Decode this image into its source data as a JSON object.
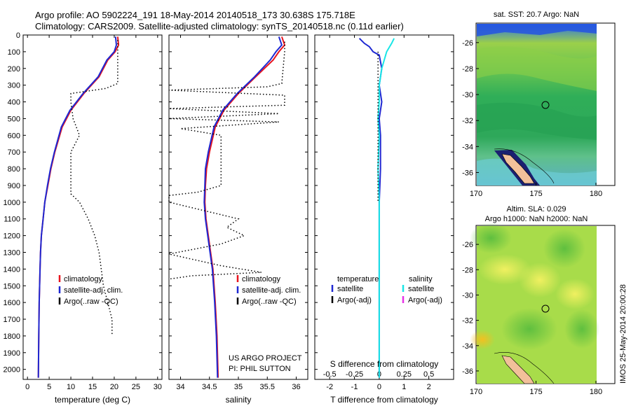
{
  "header": {
    "line1": "Argo profile: AO 5902224_191 18-May-2014 20140518_173 30.638S 175.718E",
    "line2": "Climatology: CARS2009. Satellite-adjusted climatology: synTS_20140518.nc (0.11d earlier)"
  },
  "colors": {
    "climatology": "#e8141e",
    "satellite": "#1e28d2",
    "argo": "#000000",
    "sat_salinity": "#19e6e6",
    "argo_adj_salinity": "#e632e6"
  },
  "chart_data": [
    {
      "type": "line",
      "name": "temperature-panel",
      "xlabel": "temperature (deg C)",
      "xlim": [
        -1,
        31
      ],
      "xticks": [
        0,
        5,
        10,
        15,
        20,
        25,
        30
      ],
      "ylim": [
        0,
        2060
      ],
      "yticks": [
        0,
        100,
        200,
        300,
        400,
        500,
        600,
        700,
        800,
        900,
        1000,
        1100,
        1200,
        1300,
        1400,
        1500,
        1600,
        1700,
        1800,
        1900,
        2000
      ],
      "legend": [
        "climatology",
        "satellite-adj. clim.",
        "Argo(..raw -QC)"
      ],
      "legend_position": "lower-left",
      "series": [
        {
          "name": "climatology",
          "style": "solid",
          "color": "#e8141e",
          "x": [
            20.8,
            21.0,
            20.2,
            18.5,
            16.5,
            13.0,
            10.0,
            8.0,
            6.3,
            5.4,
            4.7,
            4.0,
            3.6,
            3.2,
            3.0,
            2.9,
            2.7,
            2.6,
            2.5
          ],
          "y": [
            10,
            60,
            100,
            150,
            250,
            350,
            450,
            550,
            700,
            800,
            900,
            1000,
            1100,
            1200,
            1300,
            1400,
            1600,
            1800,
            2050
          ]
        },
        {
          "name": "satellite-adj. clim.",
          "style": "solid",
          "color": "#1e28d2",
          "x": [
            20.3,
            20.5,
            20.0,
            18.3,
            16.3,
            12.8,
            9.8,
            7.8,
            6.2,
            5.3,
            4.6,
            4.0,
            3.6,
            3.2,
            3.0,
            2.9,
            2.7,
            2.6,
            2.5
          ],
          "y": [
            10,
            60,
            100,
            150,
            250,
            350,
            450,
            550,
            700,
            800,
            900,
            1000,
            1100,
            1200,
            1300,
            1400,
            1600,
            1800,
            2050
          ]
        },
        {
          "name": "Argo(..raw -QC)",
          "style": "dotted",
          "color": "#000000",
          "x": [
            20.8,
            20.8,
            20.8,
            18.0,
            10.0,
            10.0,
            10.5,
            12.0,
            11.0,
            10.0,
            10.0,
            10.0,
            12.0,
            14.0,
            15.5,
            16.5,
            17.0,
            17.5,
            18.5,
            19.5,
            19.5
          ],
          "y": [
            30,
            100,
            290,
            320,
            350,
            400,
            500,
            600,
            650,
            700,
            800,
            950,
            1000,
            1100,
            1200,
            1300,
            1400,
            1500,
            1600,
            1700,
            1800
          ]
        }
      ]
    },
    {
      "type": "line",
      "name": "salinity-panel",
      "xlabel": "salinity",
      "xlim": [
        33.8,
        36.2
      ],
      "xticks": [
        34,
        34.5,
        35,
        35.5,
        36
      ],
      "ylim": [
        0,
        2060
      ],
      "legend": [
        "climatology",
        "satellite-adj. clim.",
        "Argo(..raw -QC)"
      ],
      "legend_position": "lower-right",
      "annotation": [
        "US ARGO PROJECT",
        "PI: PHIL SUTTON"
      ],
      "series": [
        {
          "name": "climatology",
          "style": "solid",
          "color": "#e8141e",
          "x": [
            35.75,
            35.8,
            35.7,
            35.6,
            35.3,
            35.0,
            34.75,
            34.6,
            34.5,
            34.45,
            34.43,
            34.42,
            34.44,
            34.48,
            34.52,
            34.56,
            34.6,
            34.63,
            34.65
          ],
          "y": [
            10,
            60,
            100,
            150,
            250,
            350,
            450,
            550,
            700,
            800,
            900,
            1000,
            1100,
            1200,
            1300,
            1400,
            1600,
            1800,
            2050
          ]
        },
        {
          "name": "satellite-adj. clim.",
          "style": "solid",
          "color": "#1e28d2",
          "x": [
            35.7,
            35.75,
            35.65,
            35.55,
            35.28,
            34.98,
            34.73,
            34.58,
            34.48,
            34.43,
            34.42,
            34.41,
            34.43,
            34.47,
            34.51,
            34.55,
            34.59,
            34.62,
            34.64
          ],
          "y": [
            10,
            60,
            100,
            150,
            250,
            350,
            450,
            550,
            700,
            800,
            900,
            1000,
            1100,
            1200,
            1300,
            1400,
            1600,
            1800,
            2050
          ]
        },
        {
          "name": "Argo(..raw -QC)",
          "style": "dotted",
          "color": "#000000",
          "x": [
            35.8,
            35.8,
            35.75,
            35.5,
            33.8,
            35.8,
            35.8,
            33.8,
            35.7,
            33.8,
            35.7,
            34.0,
            34.7,
            34.7,
            34.7,
            34.3,
            33.8,
            33.8,
            35.0,
            34.8,
            35.1,
            34.7,
            33.8,
            34.7,
            35.4,
            34.2,
            33.8
          ],
          "y": [
            40,
            100,
            290,
            310,
            330,
            360,
            420,
            440,
            470,
            500,
            520,
            560,
            600,
            800,
            900,
            940,
            960,
            1000,
            1100,
            1150,
            1200,
            1250,
            1310,
            1380,
            1420,
            1440,
            1460
          ]
        }
      ]
    },
    {
      "type": "line",
      "name": "difference-panel",
      "xlabel": "T difference from climatology",
      "xlabel_top": "S difference from climatology",
      "xlim": [
        -2.6,
        3.0
      ],
      "xticks": [
        -2,
        -1,
        0,
        1,
        2
      ],
      "xticks_secondary": [
        -0.5,
        -0.25,
        0,
        0.25,
        0.5
      ],
      "ylim": [
        0,
        2060
      ],
      "legend_left_title": "temperature",
      "legend_right_title": "salinity",
      "legend_left": [
        "satellite",
        "Argo(-adj)"
      ],
      "legend_right": [
        "satellite",
        "Argo(-adj)"
      ],
      "series": [
        {
          "name": "temperature satellite",
          "style": "solid",
          "color": "#1e28d2",
          "x": [
            -0.8,
            -0.6,
            -0.4,
            -0.25,
            0.0,
            0.1,
            0.0,
            0.1,
            0.0,
            0.05,
            0.05,
            0.0,
            0.0,
            0.0
          ],
          "y": [
            20,
            50,
            70,
            100,
            120,
            200,
            300,
            400,
            500,
            600,
            800,
            1000,
            1300,
            2050
          ]
        },
        {
          "name": "salinity satellite",
          "style": "solid",
          "color": "#19e6e6",
          "x": [
            0.6,
            0.5,
            0.3,
            0.1,
            0.0,
            0.0,
            -0.05,
            0.0,
            -0.05,
            0.0,
            0.0,
            0.0
          ],
          "y": [
            20,
            50,
            100,
            200,
            300,
            400,
            500,
            600,
            800,
            1000,
            1300,
            2050
          ]
        },
        {
          "name": "temperature Argo(-adj)",
          "style": "dotted",
          "color": "#000000",
          "x": [
            -0.05,
            -0.05,
            -0.05
          ],
          "y": [
            100,
            500,
            1000
          ]
        }
      ]
    }
  ],
  "maps": [
    {
      "title": "sat. SST: 20.7 Argo: NaN",
      "xlim": [
        170,
        180
      ],
      "xticks": [
        "170",
        "175",
        "180"
      ],
      "ylim": [
        -37,
        -24.5
      ],
      "yticks": [
        "-26",
        "-28",
        "-30",
        "-32",
        "-34",
        "-36"
      ],
      "profile_lon": 175.718,
      "profile_lat": -30.638
    },
    {
      "title_line1": "Altim. SLA: 0.029",
      "title_line2": "Argo h1000: NaN h2000: NaN",
      "xlim": [
        170,
        180
      ],
      "xticks": [
        "170",
        "175",
        "180"
      ],
      "ylim": [
        -37,
        -24.5
      ],
      "yticks": [
        "-26",
        "-28",
        "-30",
        "-32",
        "-34",
        "-36"
      ],
      "profile_lon": 175.718,
      "profile_lat": -30.638
    }
  ],
  "footer": {
    "imos_stamp": "IMOS 25-May-2014 20:00:28"
  }
}
